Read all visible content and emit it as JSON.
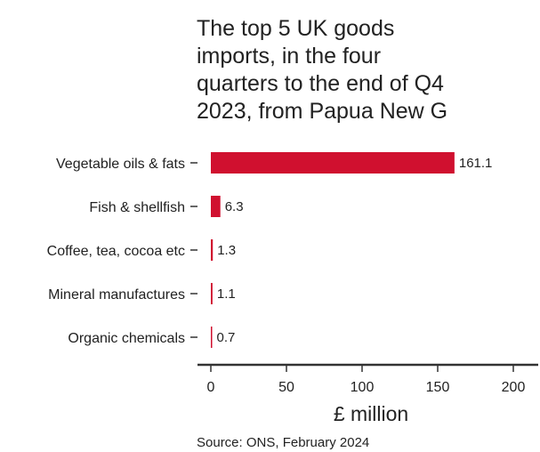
{
  "chart_data": {
    "type": "bar",
    "orientation": "horizontal",
    "title_lines": [
      "The top 5 UK goods",
      "imports, in the four",
      "quarters to the end of Q4",
      "2023, from Papua New G"
    ],
    "categories": [
      "Vegetable oils & fats",
      "Fish & shellfish",
      "Coffee, tea, cocoa etc",
      "Mineral manufactures",
      "Organic chemicals"
    ],
    "values": [
      161.1,
      6.3,
      1.3,
      1.1,
      0.7
    ],
    "value_labels": [
      "161.1",
      "6.3",
      "1.3",
      "1.1",
      "0.7"
    ],
    "x_ticks": [
      0,
      50,
      100,
      150,
      200
    ],
    "x_tick_labels": [
      "0",
      "50",
      "100",
      "150",
      "200"
    ],
    "xlim": [
      0,
      200
    ],
    "xlabel": "£ million",
    "ylabel": "",
    "grid": false,
    "bar_color": "#d0102f",
    "source": "Source: ONS, February 2024"
  }
}
